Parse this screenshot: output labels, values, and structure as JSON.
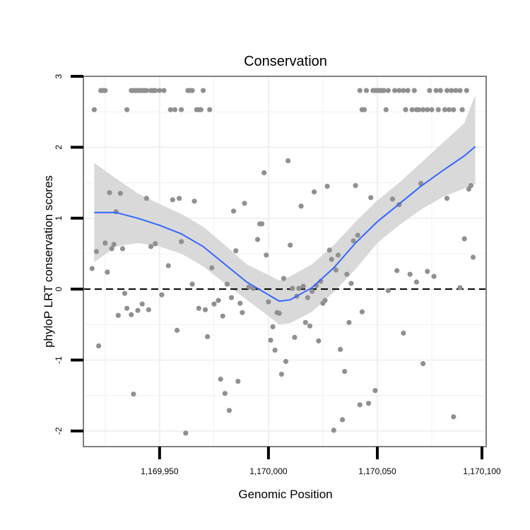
{
  "chart_data": {
    "type": "scatter",
    "title": "Conservation",
    "xlabel": "Genomic Position",
    "ylabel": "phyloP LRT conservation scores",
    "xlim": [
      1169915,
      1170100
    ],
    "ylim": [
      -2.22,
      3.0
    ],
    "x_ticks": [
      1169950,
      1170000,
      1170050,
      1170100
    ],
    "x_tick_labels": [
      "1,169,950",
      "1,170,000",
      "1,170,050",
      "1,170,100"
    ],
    "y_ticks": [
      -2,
      -1,
      0,
      1,
      2,
      3
    ],
    "y_tick_labels": [
      "-2",
      "-1",
      "0",
      "1",
      "2",
      "3"
    ],
    "reference_line_y": 0,
    "grid": true,
    "colors": {
      "points": "#909090",
      "smooth": "#3366ff",
      "ribbon": "#d9d9d9",
      "reference": "#000000",
      "panel_border": "#808080",
      "grid": "#f0f0f0"
    },
    "smooth": {
      "x": [
        1169920,
        1169930,
        1169940,
        1169950,
        1169960,
        1169970,
        1169980,
        1169990,
        1170000,
        1170005,
        1170010,
        1170020,
        1170030,
        1170040,
        1170050,
        1170060,
        1170070,
        1170080,
        1170090,
        1170095
      ],
      "y": [
        1.08,
        1.08,
        1.0,
        0.9,
        0.78,
        0.6,
        0.35,
        0.1,
        -0.08,
        -0.17,
        -0.15,
        0.02,
        0.3,
        0.65,
        0.95,
        1.2,
        1.45,
        1.67,
        1.88,
        2.01
      ],
      "lower": [
        0.38,
        0.6,
        0.65,
        0.6,
        0.5,
        0.32,
        0.08,
        -0.15,
        -0.38,
        -0.5,
        -0.48,
        -0.32,
        -0.04,
        0.28,
        0.65,
        0.9,
        1.12,
        1.3,
        1.42,
        1.48
      ],
      "upper": [
        1.78,
        1.56,
        1.35,
        1.2,
        1.06,
        0.88,
        0.62,
        0.35,
        0.2,
        0.12,
        0.18,
        0.35,
        0.62,
        0.95,
        1.25,
        1.5,
        1.78,
        2.06,
        2.34,
        2.74
      ]
    },
    "points": [
      [
        1169920,
        2.53
      ],
      [
        1169923,
        2.8
      ],
      [
        1169924,
        2.8
      ],
      [
        1169925,
        2.8
      ],
      [
        1169935,
        2.53
      ],
      [
        1169937,
        2.8
      ],
      [
        1169938,
        2.8
      ],
      [
        1169939,
        2.8
      ],
      [
        1169940,
        2.8
      ],
      [
        1169941,
        2.8
      ],
      [
        1169942,
        2.8
      ],
      [
        1169943,
        2.8
      ],
      [
        1169944,
        2.8
      ],
      [
        1169946,
        2.8
      ],
      [
        1169947,
        2.8
      ],
      [
        1169948,
        2.8
      ],
      [
        1169950,
        2.8
      ],
      [
        1169952,
        2.8
      ],
      [
        1169955,
        2.53
      ],
      [
        1169957,
        2.53
      ],
      [
        1169960,
        2.53
      ],
      [
        1169963,
        2.8
      ],
      [
        1169964,
        2.8
      ],
      [
        1169965,
        2.8
      ],
      [
        1169967,
        2.53
      ],
      [
        1169968,
        2.53
      ],
      [
        1169969,
        2.53
      ],
      [
        1169970,
        2.8
      ],
      [
        1169973,
        2.53
      ],
      [
        1170042,
        2.8
      ],
      [
        1170043,
        2.53
      ],
      [
        1170044,
        2.53
      ],
      [
        1170045,
        2.8
      ],
      [
        1170048,
        2.8
      ],
      [
        1170049,
        2.8
      ],
      [
        1170050,
        2.8
      ],
      [
        1170051,
        2.8
      ],
      [
        1170052,
        2.8
      ],
      [
        1170053,
        2.8
      ],
      [
        1170054,
        2.53
      ],
      [
        1170055,
        2.8
      ],
      [
        1170058,
        2.8
      ],
      [
        1170060,
        2.8
      ],
      [
        1170062,
        2.8
      ],
      [
        1170063,
        2.53
      ],
      [
        1170064,
        2.8
      ],
      [
        1170066,
        2.53
      ],
      [
        1170067,
        2.8
      ],
      [
        1170068,
        2.53
      ],
      [
        1170069,
        2.53
      ],
      [
        1170071,
        2.53
      ],
      [
        1170073,
        2.53
      ],
      [
        1170074,
        2.8
      ],
      [
        1170075,
        2.53
      ],
      [
        1170077,
        2.8
      ],
      [
        1170078,
        2.53
      ],
      [
        1170079,
        2.8
      ],
      [
        1170081,
        2.53
      ],
      [
        1170082,
        2.8
      ],
      [
        1170083,
        2.53
      ],
      [
        1170084,
        2.8
      ],
      [
        1170085,
        2.53
      ],
      [
        1170086,
        2.8
      ],
      [
        1170088,
        2.8
      ],
      [
        1170089,
        2.53
      ],
      [
        1170091,
        2.8
      ],
      [
        1169919,
        0.29
      ],
      [
        1169921,
        0.53
      ],
      [
        1169922,
        -0.8
      ],
      [
        1169925,
        0.65
      ],
      [
        1169926,
        0.24
      ],
      [
        1169927,
        1.36
      ],
      [
        1169928,
        0.57
      ],
      [
        1169929,
        0.63
      ],
      [
        1169930,
        1.09
      ],
      [
        1169931,
        -0.37
      ],
      [
        1169932,
        1.35
      ],
      [
        1169933,
        0.57
      ],
      [
        1169934,
        -0.06
      ],
      [
        1169935,
        -0.27
      ],
      [
        1169937,
        -0.36
      ],
      [
        1169938,
        -1.48
      ],
      [
        1169940,
        -0.3
      ],
      [
        1169942,
        -0.21
      ],
      [
        1169944,
        1.28
      ],
      [
        1169945,
        -0.29
      ],
      [
        1169946,
        0.6
      ],
      [
        1169948,
        0.64
      ],
      [
        1169951,
        -0.08
      ],
      [
        1169954,
        0.33
      ],
      [
        1169956,
        1.26
      ],
      [
        1169958,
        -0.58
      ],
      [
        1169959,
        1.28
      ],
      [
        1169960,
        0.67
      ],
      [
        1169962,
        -2.03
      ],
      [
        1169965,
        0.07
      ],
      [
        1169966,
        1.24
      ],
      [
        1169968,
        -0.27
      ],
      [
        1169971,
        -0.29
      ],
      [
        1169972,
        -0.67
      ],
      [
        1169974,
        0.3
      ],
      [
        1169975,
        -0.21
      ],
      [
        1169977,
        -0.16
      ],
      [
        1169978,
        -1.27
      ],
      [
        1169979,
        -0.38
      ],
      [
        1169980,
        -1.47
      ],
      [
        1169981,
        0.07
      ],
      [
        1169982,
        -1.71
      ],
      [
        1169983,
        -0.12
      ],
      [
        1169984,
        1.1
      ],
      [
        1169985,
        0.54
      ],
      [
        1169986,
        -1.3
      ],
      [
        1169987,
        -0.2
      ],
      [
        1169988,
        -0.33
      ],
      [
        1169989,
        1.21
      ],
      [
        1169991,
        0.03
      ],
      [
        1169993,
        0.01
      ],
      [
        1169995,
        0.7
      ],
      [
        1169996,
        0.92
      ],
      [
        1169997,
        0.92
      ],
      [
        1169998,
        1.64
      ],
      [
        1169999,
        0.48
      ],
      [
        1170000,
        -0.18
      ],
      [
        1170001,
        -0.72
      ],
      [
        1170002,
        -0.53
      ],
      [
        1170003,
        -0.86
      ],
      [
        1170004,
        -0.33
      ],
      [
        1170005,
        -0.34
      ],
      [
        1170006,
        -1.2
      ],
      [
        1170007,
        0.15
      ],
      [
        1170008,
        -1.02
      ],
      [
        1170009,
        1.81
      ],
      [
        1170010,
        0.62
      ],
      [
        1170011,
        0.01
      ],
      [
        1170012,
        -0.68
      ],
      [
        1170013,
        -0.1
      ],
      [
        1170014,
        0.01
      ],
      [
        1170015,
        1.17
      ],
      [
        1170016,
        0.04
      ],
      [
        1170017,
        -0.47
      ],
      [
        1170018,
        -0.12
      ],
      [
        1170019,
        -0.52
      ],
      [
        1170020,
        -0.03
      ],
      [
        1170021,
        1.37
      ],
      [
        1170022,
        0.05
      ],
      [
        1170023,
        -0.73
      ],
      [
        1170024,
        0.11
      ],
      [
        1170025,
        -0.2
      ],
      [
        1170026,
        -0.16
      ],
      [
        1170027,
        1.45
      ],
      [
        1170028,
        0.55
      ],
      [
        1170029,
        0.42
      ],
      [
        1170030,
        -1.99
      ],
      [
        1170031,
        0.27
      ],
      [
        1170032,
        0.48
      ],
      [
        1170033,
        -0.85
      ],
      [
        1170034,
        -1.84
      ],
      [
        1170035,
        -1.16
      ],
      [
        1170036,
        0.21
      ],
      [
        1170037,
        -0.47
      ],
      [
        1170038,
        0.08
      ],
      [
        1170039,
        0.68
      ],
      [
        1170040,
        1.46
      ],
      [
        1170041,
        0.76
      ],
      [
        1170042,
        -1.63
      ],
      [
        1170043,
        -0.32
      ],
      [
        1170046,
        -1.61
      ],
      [
        1170047,
        1.29
      ],
      [
        1170049,
        -1.43
      ],
      [
        1170055,
        -0.02
      ],
      [
        1170057,
        1.27
      ],
      [
        1170059,
        0.26
      ],
      [
        1170060,
        1.19
      ],
      [
        1170062,
        -0.62
      ],
      [
        1170065,
        0.21
      ],
      [
        1170068,
        0.1
      ],
      [
        1170070,
        1.49
      ],
      [
        1170071,
        -1.05
      ],
      [
        1170073,
        0.25
      ],
      [
        1170076,
        0.18
      ],
      [
        1170082,
        1.28
      ],
      [
        1170085,
        -1.8
      ],
      [
        1170088,
        0.02
      ],
      [
        1170090,
        0.71
      ],
      [
        1170092,
        1.41
      ],
      [
        1170093,
        1.46
      ],
      [
        1170094,
        0.45
      ]
    ]
  }
}
